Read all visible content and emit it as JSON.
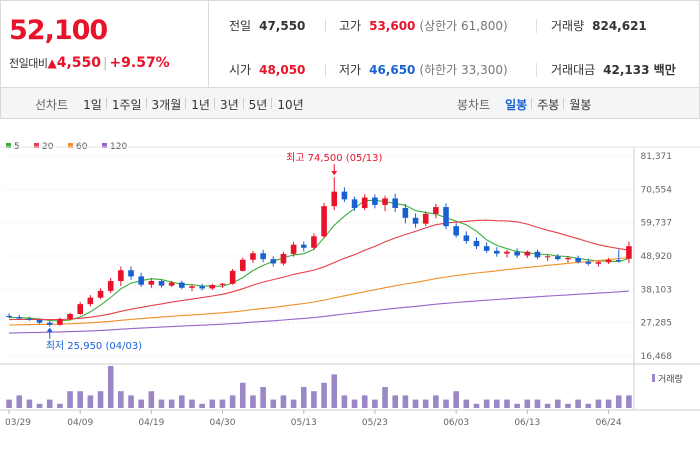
{
  "quote": {
    "price": "52,100",
    "prev_close_label": "전일대비",
    "change_amount": "4,550",
    "change_rate": "+9.57%",
    "colors": {
      "up": "#e8132a",
      "down": "#1961d3"
    },
    "stats": {
      "prev_label": "전일",
      "prev_value": "47,550",
      "high_label": "고가",
      "high_value": "53,600",
      "upper_limit": "(상한가 61,800)",
      "volume_label": "거래량",
      "volume_value": "824,621",
      "open_label": "시가",
      "open_value": "48,050",
      "low_label": "저가",
      "low_value": "46,650",
      "lower_limit": "(하한가 33,300)",
      "amount_label": "거래대금",
      "amount_value": "42,133 백만"
    }
  },
  "tabs": {
    "line_label": "선차트",
    "line_tabs": [
      "1일",
      "1주일",
      "3개월",
      "1년",
      "3년",
      "5년",
      "10년"
    ],
    "candle_label": "봉차트",
    "candle_tabs": [
      "일봉",
      "주봉",
      "월봉"
    ],
    "active_candle": "일봉"
  },
  "chart_data": {
    "type": "candlestick",
    "legend": [
      {
        "name": "5",
        "color": "#3cae3c"
      },
      {
        "name": "20",
        "color": "#e8404a"
      },
      {
        "name": "60",
        "color": "#f0902a"
      },
      {
        "name": "120",
        "color": "#9a63c9"
      }
    ],
    "y_ticks": [
      "81,371",
      "70,554",
      "59,737",
      "48,920",
      "38,103",
      "27,285",
      "16,468"
    ],
    "y_range": [
      16468,
      81371
    ],
    "x_labels": [
      "03/29",
      "04/09",
      "04/19",
      "04/30",
      "05/13",
      "05/23",
      "06/03",
      "06/13",
      "06/24"
    ],
    "max_annotation": "최고 74,500 (05/13)",
    "min_annotation": "최저 25,950 (04/03)",
    "volume_legend": "거래량",
    "candles": [
      [
        29500,
        30300,
        28800,
        29100
      ],
      [
        29100,
        29800,
        28400,
        28600
      ],
      [
        28600,
        29200,
        27900,
        28200
      ],
      [
        28200,
        28600,
        26800,
        27300
      ],
      [
        27300,
        27800,
        25950,
        26600
      ],
      [
        26600,
        28900,
        26300,
        28500
      ],
      [
        28500,
        30500,
        28100,
        30100
      ],
      [
        30100,
        34000,
        29800,
        33300
      ],
      [
        33300,
        36200,
        32600,
        35400
      ],
      [
        35400,
        38400,
        34900,
        37600
      ],
      [
        37600,
        41800,
        36900,
        40800
      ],
      [
        40800,
        45500,
        39200,
        44300
      ],
      [
        44300,
        45600,
        41200,
        42300
      ],
      [
        42300,
        43500,
        38900,
        39600
      ],
      [
        39600,
        41700,
        38600,
        40800
      ],
      [
        40800,
        41200,
        38700,
        39300
      ],
      [
        39300,
        40800,
        38900,
        40300
      ],
      [
        40300,
        40900,
        38100,
        38600
      ],
      [
        38600,
        39700,
        37500,
        39100
      ],
      [
        39100,
        39900,
        37700,
        38400
      ],
      [
        38400,
        39900,
        37900,
        39500
      ],
      [
        39500,
        40200,
        38600,
        39900
      ],
      [
        39900,
        44700,
        39600,
        44100
      ],
      [
        44100,
        48400,
        43900,
        47700
      ],
      [
        47700,
        50500,
        46700,
        49800
      ],
      [
        49800,
        50900,
        46900,
        47900
      ],
      [
        47900,
        48800,
        45500,
        46500
      ],
      [
        46500,
        50300,
        45900,
        49600
      ],
      [
        49600,
        53500,
        48700,
        52600
      ],
      [
        52600,
        53600,
        50400,
        51600
      ],
      [
        51600,
        56300,
        50800,
        55300
      ],
      [
        55300,
        66200,
        54800,
        65100
      ],
      [
        65100,
        74500,
        63800,
        69800
      ],
      [
        69800,
        71200,
        66400,
        67300
      ],
      [
        67300,
        68200,
        63600,
        64500
      ],
      [
        64500,
        69000,
        63800,
        67900
      ],
      [
        67900,
        68900,
        64400,
        65500
      ],
      [
        65500,
        68500,
        63500,
        67600
      ],
      [
        67600,
        69100,
        63200,
        64500
      ],
      [
        64500,
        65800,
        59500,
        61300
      ],
      [
        61300,
        62700,
        58100,
        59400
      ],
      [
        59400,
        63400,
        58700,
        62600
      ],
      [
        62600,
        65900,
        61200,
        64800
      ],
      [
        64800,
        66000,
        57600,
        58600
      ],
      [
        58600,
        59600,
        54900,
        55600
      ],
      [
        55600,
        56900,
        52900,
        53800
      ],
      [
        53800,
        55000,
        51200,
        52100
      ],
      [
        52100,
        53400,
        49900,
        50600
      ],
      [
        50600,
        51800,
        48700,
        49700
      ],
      [
        49700,
        50900,
        48400,
        50300
      ],
      [
        50300,
        51400,
        48300,
        49100
      ],
      [
        49100,
        50700,
        48300,
        50300
      ],
      [
        50300,
        51000,
        47900,
        48500
      ],
      [
        48500,
        49500,
        47300,
        48800
      ],
      [
        48800,
        49600,
        47400,
        47900
      ],
      [
        47900,
        48900,
        46800,
        48300
      ],
      [
        48300,
        49000,
        46500,
        47000
      ],
      [
        47000,
        48000,
        45800,
        46400
      ],
      [
        46400,
        47400,
        45500,
        46900
      ],
      [
        46900,
        48300,
        46300,
        47600
      ],
      [
        47600,
        51000,
        46800,
        47550
      ],
      [
        48050,
        53600,
        46650,
        52100
      ]
    ],
    "volume": [
      2,
      3,
      2,
      1,
      2,
      1,
      4,
      4,
      3,
      4,
      10,
      4,
      3,
      2,
      4,
      2,
      2,
      3,
      2,
      1,
      2,
      2,
      3,
      6,
      3,
      5,
      2,
      3,
      2,
      5,
      4,
      6,
      8,
      3,
      2,
      3,
      2,
      5,
      3,
      3,
      2,
      2,
      3,
      2,
      4,
      2,
      1,
      2,
      2,
      2,
      1,
      2,
      2,
      1,
      2,
      1,
      2,
      1,
      2,
      2,
      3,
      3
    ]
  }
}
